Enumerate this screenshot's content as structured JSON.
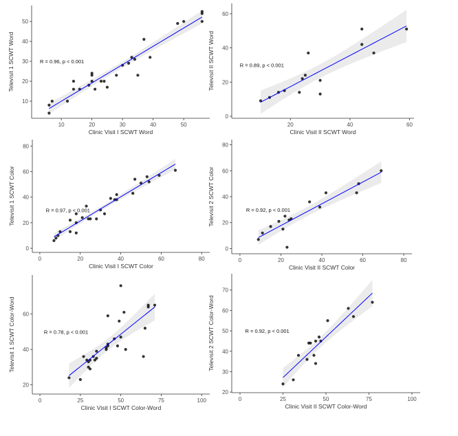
{
  "chart_data": [
    {
      "type": "scatter",
      "xlabel": "Clinic Visit I SCWT Word",
      "ylabel": "Televisit 1 SCWT Word",
      "annotation": "R = 0.96, p < 0.001",
      "annotation_pos": [
        3,
        30
      ],
      "xlim": [
        0.3,
        58.5
      ],
      "ylim": [
        1.4,
        58
      ],
      "xticks": [
        10,
        20,
        30,
        40,
        50
      ],
      "yticks": [
        10,
        20,
        30,
        40,
        50
      ],
      "points": [
        [
          6,
          8
        ],
        [
          6,
          4
        ],
        [
          7,
          10
        ],
        [
          12,
          10
        ],
        [
          14,
          20
        ],
        [
          14,
          16
        ],
        [
          16,
          16
        ],
        [
          19,
          18
        ],
        [
          20,
          20
        ],
        [
          20,
          23
        ],
        [
          20,
          24
        ],
        [
          21,
          16
        ],
        [
          23,
          20
        ],
        [
          24,
          20
        ],
        [
          25,
          17
        ],
        [
          28,
          23
        ],
        [
          30,
          28
        ],
        [
          32,
          29
        ],
        [
          33,
          32
        ],
        [
          34,
          31
        ],
        [
          35,
          23
        ],
        [
          37,
          41
        ],
        [
          39,
          32
        ],
        [
          48,
          49
        ],
        [
          50,
          50
        ],
        [
          56,
          55
        ],
        [
          56,
          54
        ],
        [
          56,
          50
        ]
      ],
      "fit": "linear with 95% confidence band",
      "grid": false
    },
    {
      "type": "scatter",
      "xlabel": "Clinic Visit II SCWT Word",
      "ylabel": "Televisit II SCWT Word",
      "annotation": "R = 0.89, p < 0.001",
      "annotation_pos": [
        3,
        30
      ],
      "xlim": [
        0.3,
        61.5
      ],
      "ylim": [
        -1.2,
        66
      ],
      "xticks": [
        20,
        40,
        60
      ],
      "yticks": [
        0,
        20,
        40,
        60
      ],
      "points": [
        [
          10,
          9
        ],
        [
          13,
          11
        ],
        [
          16,
          14
        ],
        [
          18,
          15
        ],
        [
          23,
          14
        ],
        [
          24,
          22
        ],
        [
          25,
          24
        ],
        [
          26,
          37
        ],
        [
          30,
          21
        ],
        [
          30,
          13
        ],
        [
          44,
          51
        ],
        [
          44,
          42
        ],
        [
          48,
          37
        ],
        [
          59,
          51
        ]
      ],
      "fit": "linear with 95% confidence band",
      "grid": false
    },
    {
      "type": "scatter",
      "xlabel": "Clinic Visit I SCWT Color",
      "ylabel": "Televisit 1 SCWT Color",
      "annotation": "R = 0.97, p < 0.001",
      "annotation_pos": [
        3,
        30
      ],
      "xlim": [
        -3.7,
        84
      ],
      "ylim": [
        -3.2,
        85
      ],
      "xticks": [
        0,
        20,
        40,
        60,
        80
      ],
      "yticks": [
        0,
        20,
        40,
        60,
        80
      ],
      "points": [
        [
          7,
          6
        ],
        [
          8,
          8
        ],
        [
          9,
          10
        ],
        [
          10,
          13
        ],
        [
          15,
          22
        ],
        [
          15,
          13
        ],
        [
          18,
          27
        ],
        [
          18,
          20
        ],
        [
          18,
          12
        ],
        [
          21,
          24
        ],
        [
          23,
          33
        ],
        [
          24,
          23
        ],
        [
          25,
          23
        ],
        [
          28,
          23
        ],
        [
          30,
          30
        ],
        [
          32,
          27
        ],
        [
          35,
          39
        ],
        [
          37,
          38
        ],
        [
          38,
          38
        ],
        [
          38,
          42
        ],
        [
          46,
          43
        ],
        [
          47,
          54
        ],
        [
          50,
          51
        ],
        [
          53,
          56
        ],
        [
          54,
          52
        ],
        [
          59,
          57
        ],
        [
          67,
          61
        ]
      ],
      "fit": "linear with 95% confidence band",
      "grid": false
    },
    {
      "type": "scatter",
      "xlabel": "Clinic Visit II SCWT Color",
      "ylabel": "Televisit 2 SCWT Color",
      "annotation": "R = 0.92, p < 0.001",
      "annotation_pos": [
        3,
        30
      ],
      "xlim": [
        -4,
        84
      ],
      "ylim": [
        -4,
        84
      ],
      "xticks": [
        0,
        20,
        40,
        60,
        80
      ],
      "yticks": [
        0,
        20,
        40,
        60,
        80
      ],
      "points": [
        [
          9,
          7
        ],
        [
          11,
          12
        ],
        [
          15,
          17
        ],
        [
          19,
          21
        ],
        [
          21,
          15
        ],
        [
          22,
          25
        ],
        [
          23,
          1
        ],
        [
          24,
          22
        ],
        [
          25,
          23
        ],
        [
          34,
          36
        ],
        [
          39,
          32
        ],
        [
          42,
          43
        ],
        [
          57,
          43
        ],
        [
          58,
          50
        ],
        [
          69,
          60
        ]
      ],
      "fit": "linear with 95% confidence band",
      "grid": false
    },
    {
      "type": "scatter",
      "xlabel": "Clinic Visit I SCWT Color-Word",
      "ylabel": "Televisit 1 SCWT Color-Word",
      "annotation": "R = 0.78, p < 0.001",
      "annotation_pos": [
        2.5,
        50
      ],
      "xlim": [
        -4.7,
        105
      ],
      "ylim": [
        14.8,
        82
      ],
      "xticks": [
        0,
        25,
        50,
        75,
        100
      ],
      "yticks": [
        20,
        40,
        60
      ],
      "points": [
        [
          18,
          24
        ],
        [
          25,
          23
        ],
        [
          27,
          36
        ],
        [
          29,
          34
        ],
        [
          30,
          33
        ],
        [
          30,
          30
        ],
        [
          31,
          29
        ],
        [
          31,
          34
        ],
        [
          33,
          36
        ],
        [
          34,
          34
        ],
        [
          35,
          35
        ],
        [
          35,
          39
        ],
        [
          41,
          40
        ],
        [
          41,
          41
        ],
        [
          42,
          43
        ],
        [
          42,
          42
        ],
        [
          42,
          59
        ],
        [
          46,
          46
        ],
        [
          48,
          42
        ],
        [
          49,
          56
        ],
        [
          50,
          76
        ],
        [
          50,
          47
        ],
        [
          52,
          61
        ],
        [
          53,
          40
        ],
        [
          64,
          36
        ],
        [
          65,
          52
        ],
        [
          67,
          64
        ],
        [
          67,
          65
        ],
        [
          71,
          65
        ]
      ],
      "fit": "linear with 95% confidence band",
      "grid": false
    },
    {
      "type": "scatter",
      "xlabel": "Clinic Visit II SCWT Color-Word",
      "ylabel": "Televisit 2 SCWT Color-Word",
      "annotation": "R = 0.92, p < 0.001",
      "annotation_pos": [
        3,
        50
      ],
      "xlim": [
        -4.8,
        104.8
      ],
      "ylim": [
        19.7,
        78
      ],
      "xticks": [
        0,
        25,
        50,
        75,
        100
      ],
      "yticks": [
        20,
        30,
        40,
        50,
        60,
        70
      ],
      "points": [
        [
          25,
          24
        ],
        [
          31,
          26
        ],
        [
          34,
          38
        ],
        [
          39,
          36
        ],
        [
          40,
          44
        ],
        [
          41,
          44
        ],
        [
          43,
          38
        ],
        [
          44,
          45
        ],
        [
          44,
          34
        ],
        [
          46,
          47
        ],
        [
          47,
          45
        ],
        [
          51,
          55
        ],
        [
          63,
          61
        ],
        [
          66,
          57
        ],
        [
          77,
          64
        ]
      ],
      "fit": "linear with 95% confidence band",
      "grid": false
    }
  ],
  "colors": {
    "fit_line": "#0000ff",
    "band": "#ebebeb",
    "points": "#111111",
    "axis": "#333333"
  }
}
